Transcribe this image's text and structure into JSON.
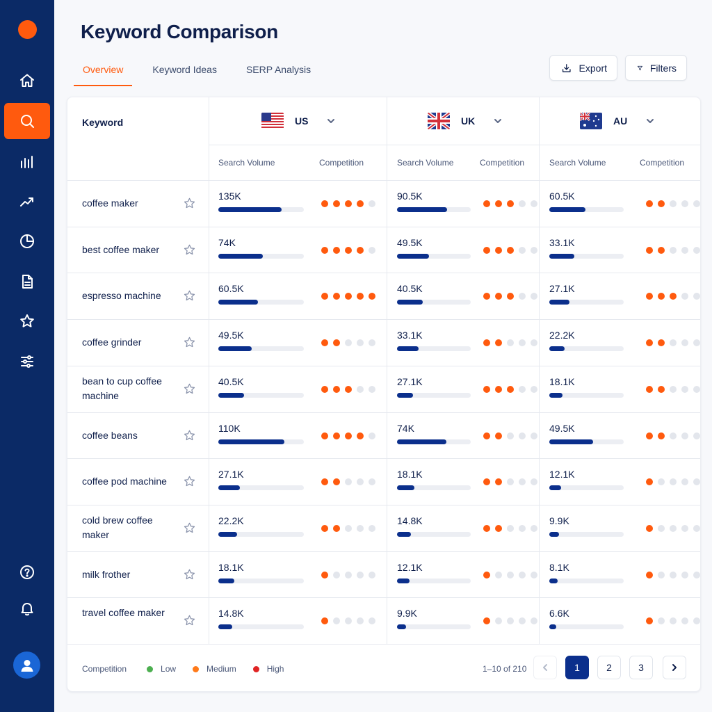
{
  "colors": {
    "sidebar": "#0b2a66",
    "accent": "#ff5a0e",
    "bar": "#0b2f8c",
    "low": "#4caf50",
    "medium": "#ff7a1a",
    "high": "#e02424"
  },
  "sidebar": {
    "items": [
      {
        "icon": "home-icon"
      },
      {
        "icon": "search-icon",
        "active": true
      },
      {
        "icon": "bar-chart-icon"
      },
      {
        "icon": "trend-icon"
      },
      {
        "icon": "pie-chart-icon"
      },
      {
        "icon": "document-icon"
      },
      {
        "icon": "star-icon"
      },
      {
        "icon": "sliders-icon"
      },
      {
        "icon": "help-icon"
      },
      {
        "icon": "bell-icon"
      }
    ],
    "avatar_icon": "user-icon"
  },
  "header": {
    "title": "Keyword Comparison",
    "tabs": [
      {
        "label": "Overview",
        "active": true
      },
      {
        "label": "Keyword Ideas"
      },
      {
        "label": "SERP Analysis"
      }
    ],
    "export_label": "Export",
    "filters_label": "Filters"
  },
  "table": {
    "keyword_header": "Keyword",
    "countries": [
      {
        "code": "US",
        "flag": "us-flag",
        "volume_header": "Search Volume",
        "competition_header": "Competition"
      },
      {
        "code": "UK",
        "flag": "uk-flag",
        "volume_header": "Search Volume",
        "competition_header": "Competition"
      },
      {
        "code": "AU",
        "flag": "au-flag",
        "volume_header": "Search Volume",
        "competition_header": "Competition"
      }
    ],
    "rows": [
      {
        "keyword": "coffee maker",
        "cells": [
          {
            "volume": "135K",
            "bar": 0.74,
            "competition": 4
          },
          {
            "volume": "90.5K",
            "bar": 0.68,
            "competition": 3
          },
          {
            "volume": "60.5K",
            "bar": 0.49,
            "competition": 2
          }
        ]
      },
      {
        "keyword": "best coffee maker",
        "cells": [
          {
            "volume": "74K",
            "bar": 0.52,
            "competition": 4
          },
          {
            "volume": "49.5K",
            "bar": 0.43,
            "competition": 3
          },
          {
            "volume": "33.1K",
            "bar": 0.34,
            "competition": 2
          }
        ]
      },
      {
        "keyword": "espresso machine",
        "cells": [
          {
            "volume": "60.5K",
            "bar": 0.46,
            "competition": 5
          },
          {
            "volume": "40.5K",
            "bar": 0.35,
            "competition": 3
          },
          {
            "volume": "27.1K",
            "bar": 0.27,
            "competition": 3
          }
        ]
      },
      {
        "keyword": "coffee grinder",
        "cells": [
          {
            "volume": "49.5K",
            "bar": 0.39,
            "competition": 2
          },
          {
            "volume": "33.1K",
            "bar": 0.29,
            "competition": 2
          },
          {
            "volume": "22.2K",
            "bar": 0.21,
            "competition": 2
          }
        ]
      },
      {
        "keyword": "bean to cup coffee machine",
        "cells": [
          {
            "volume": "40.5K",
            "bar": 0.3,
            "competition": 3
          },
          {
            "volume": "27.1K",
            "bar": 0.22,
            "competition": 3
          },
          {
            "volume": "18.1K",
            "bar": 0.18,
            "competition": 2
          }
        ]
      },
      {
        "keyword": "coffee beans",
        "cells": [
          {
            "volume": "110K",
            "bar": 0.77,
            "competition": 4
          },
          {
            "volume": "74K",
            "bar": 0.67,
            "competition": 2
          },
          {
            "volume": "49.5K",
            "bar": 0.59,
            "competition": 2
          }
        ]
      },
      {
        "keyword": "coffee pod machine",
        "cells": [
          {
            "volume": "27.1K",
            "bar": 0.25,
            "competition": 2
          },
          {
            "volume": "18.1K",
            "bar": 0.24,
            "competition": 2
          },
          {
            "volume": "12.1K",
            "bar": 0.16,
            "competition": 1
          }
        ]
      },
      {
        "keyword": "cold brew coffee maker",
        "cells": [
          {
            "volume": "22.2K",
            "bar": 0.22,
            "competition": 2
          },
          {
            "volume": "14.8K",
            "bar": 0.19,
            "competition": 2
          },
          {
            "volume": "9.9K",
            "bar": 0.13,
            "competition": 1
          }
        ]
      },
      {
        "keyword": "milk frother",
        "cells": [
          {
            "volume": "18.1K",
            "bar": 0.19,
            "competition": 1
          },
          {
            "volume": "12.1K",
            "bar": 0.17,
            "competition": 1
          },
          {
            "volume": "8.1K",
            "bar": 0.11,
            "competition": 1
          }
        ]
      },
      {
        "keyword": "travel coffee maker",
        "cells": [
          {
            "volume": "14.8K",
            "bar": 0.16,
            "competition": 1
          },
          {
            "volume": "9.9K",
            "bar": 0.12,
            "competition": 1
          },
          {
            "volume": "6.6K",
            "bar": 0.09,
            "competition": 1
          }
        ]
      }
    ]
  },
  "footer": {
    "legend_title": "Competition",
    "legend": [
      {
        "label": "Low",
        "color": "#4caf50"
      },
      {
        "label": "Medium",
        "color": "#ff7a1a"
      },
      {
        "label": "High",
        "color": "#e02424"
      }
    ],
    "range_text": "1–10 of 210",
    "pages": [
      "1",
      "2",
      "3"
    ],
    "current_page": "1"
  }
}
